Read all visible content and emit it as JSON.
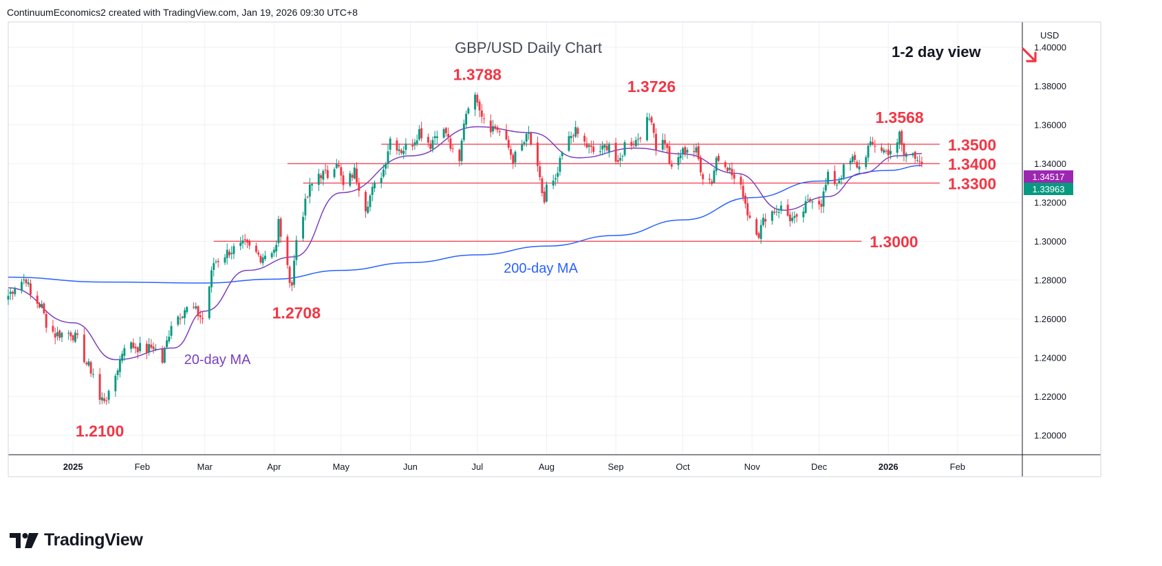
{
  "header": {
    "caption": "ContinuumEconomics2 created with TradingView.com, Jan 19, 2026 09:30 UTC+8"
  },
  "brand": {
    "name": "TradingView"
  },
  "chart_data": {
    "type": "candlestick",
    "title": "GBP/USD Daily Chart",
    "view_note": "1-2 day view",
    "view_icon": "arrow-down-right-icon",
    "currency": "USD",
    "ylim": [
      1.19,
      1.413
    ],
    "yticks": [
      "1.40000",
      "1.38000",
      "1.36000",
      "1.34000",
      "1.32000",
      "1.30000",
      "1.28000",
      "1.26000",
      "1.24000",
      "1.22000",
      "1.20000"
    ],
    "x_domain": [
      "2024-12-03",
      "2026-03-02"
    ],
    "month_ticks": [
      {
        "label": "2025",
        "date": "2025-01-01"
      },
      {
        "label": "Feb",
        "date": "2025-02-01"
      },
      {
        "label": "Mar",
        "date": "2025-03-01"
      },
      {
        "label": "Apr",
        "date": "2025-04-01"
      },
      {
        "label": "May",
        "date": "2025-05-01"
      },
      {
        "label": "Jun",
        "date": "2025-06-01"
      },
      {
        "label": "Jul",
        "date": "2025-07-01"
      },
      {
        "label": "Aug",
        "date": "2025-08-01"
      },
      {
        "label": "Sep",
        "date": "2025-09-01"
      },
      {
        "label": "Oct",
        "date": "2025-10-01"
      },
      {
        "label": "Nov",
        "date": "2025-11-01"
      },
      {
        "label": "Dec",
        "date": "2025-12-01"
      },
      {
        "label": "2026",
        "date": "2026-01-01"
      },
      {
        "label": "Feb",
        "date": "2026-02-01"
      }
    ],
    "price_path": [
      [
        "2024-12-03",
        1.272
      ],
      [
        "2024-12-06",
        1.277
      ],
      [
        "2024-12-11",
        1.281
      ],
      [
        "2024-12-13",
        1.272
      ],
      [
        "2024-12-18",
        1.266
      ],
      [
        "2024-12-20",
        1.258
      ],
      [
        "2024-12-24",
        1.252
      ],
      [
        "2024-12-31",
        1.253
      ],
      [
        "2025-01-03",
        1.249
      ],
      [
        "2025-01-07",
        1.237
      ],
      [
        "2025-01-10",
        1.232
      ],
      [
        "2025-01-13",
        1.218
      ],
      [
        "2025-01-17",
        1.22
      ],
      [
        "2025-01-20",
        1.231
      ],
      [
        "2025-01-24",
        1.247
      ],
      [
        "2025-01-28",
        1.246
      ],
      [
        "2025-02-03",
        1.244
      ],
      [
        "2025-02-06",
        1.246
      ],
      [
        "2025-02-10",
        1.238
      ],
      [
        "2025-02-14",
        1.258
      ],
      [
        "2025-02-20",
        1.265
      ],
      [
        "2025-02-24",
        1.265
      ],
      [
        "2025-02-28",
        1.26
      ],
      [
        "2025-03-03",
        1.277
      ],
      [
        "2025-03-05",
        1.289
      ],
      [
        "2025-03-12",
        1.295
      ],
      [
        "2025-03-19",
        1.298
      ],
      [
        "2025-03-26",
        1.292
      ],
      [
        "2025-04-02",
        1.297
      ],
      [
        "2025-04-03",
        1.31
      ],
      [
        "2025-04-07",
        1.285
      ],
      [
        "2025-04-09",
        1.278
      ],
      [
        "2025-04-11",
        1.301
      ],
      [
        "2025-04-14",
        1.315
      ],
      [
        "2025-04-17",
        1.327
      ],
      [
        "2025-04-21",
        1.335
      ],
      [
        "2025-04-25",
        1.334
      ],
      [
        "2025-04-29",
        1.342
      ],
      [
        "2025-05-02",
        1.328
      ],
      [
        "2025-05-07",
        1.336
      ],
      [
        "2025-05-12",
        1.318
      ],
      [
        "2025-05-15",
        1.326
      ],
      [
        "2025-05-20",
        1.337
      ],
      [
        "2025-05-23",
        1.353
      ],
      [
        "2025-05-28",
        1.347
      ],
      [
        "2025-06-02",
        1.351
      ],
      [
        "2025-06-05",
        1.357
      ],
      [
        "2025-06-10",
        1.35
      ],
      [
        "2025-06-13",
        1.357
      ],
      [
        "2025-06-17",
        1.356
      ],
      [
        "2025-06-20",
        1.345
      ],
      [
        "2025-06-23",
        1.34
      ],
      [
        "2025-06-25",
        1.362
      ],
      [
        "2025-06-27",
        1.371
      ],
      [
        "2025-07-01",
        1.374
      ],
      [
        "2025-07-03",
        1.366
      ],
      [
        "2025-07-07",
        1.359
      ],
      [
        "2025-07-10",
        1.358
      ],
      [
        "2025-07-15",
        1.348
      ],
      [
        "2025-07-17",
        1.342
      ],
      [
        "2025-07-21",
        1.349
      ],
      [
        "2025-07-24",
        1.355
      ],
      [
        "2025-07-28",
        1.336
      ],
      [
        "2025-07-31",
        1.32
      ],
      [
        "2025-08-01",
        1.328
      ],
      [
        "2025-08-05",
        1.33
      ],
      [
        "2025-08-08",
        1.345
      ],
      [
        "2025-08-13",
        1.357
      ],
      [
        "2025-08-15",
        1.355
      ],
      [
        "2025-08-19",
        1.349
      ],
      [
        "2025-08-22",
        1.346
      ],
      [
        "2025-08-26",
        1.347
      ],
      [
        "2025-08-29",
        1.351
      ],
      [
        "2025-09-02",
        1.338
      ],
      [
        "2025-09-05",
        1.35
      ],
      [
        "2025-09-10",
        1.352
      ],
      [
        "2025-09-16",
        1.363
      ],
      [
        "2025-09-17",
        1.364
      ],
      [
        "2025-09-19",
        1.349
      ],
      [
        "2025-09-23",
        1.352
      ],
      [
        "2025-09-26",
        1.336
      ],
      [
        "2025-09-30",
        1.345
      ],
      [
        "2025-10-03",
        1.348
      ],
      [
        "2025-10-07",
        1.346
      ],
      [
        "2025-10-10",
        1.334
      ],
      [
        "2025-10-14",
        1.331
      ],
      [
        "2025-10-16",
        1.343
      ],
      [
        "2025-10-20",
        1.341
      ],
      [
        "2025-10-24",
        1.332
      ],
      [
        "2025-10-28",
        1.325
      ],
      [
        "2025-10-30",
        1.315
      ],
      [
        "2025-11-04",
        1.304
      ],
      [
        "2025-11-07",
        1.313
      ],
      [
        "2025-11-11",
        1.316
      ],
      [
        "2025-11-14",
        1.317
      ],
      [
        "2025-11-18",
        1.312
      ],
      [
        "2025-11-21",
        1.31
      ],
      [
        "2025-11-25",
        1.318
      ],
      [
        "2025-11-28",
        1.323
      ],
      [
        "2025-12-02",
        1.32
      ],
      [
        "2025-12-05",
        1.333
      ],
      [
        "2025-12-09",
        1.33
      ],
      [
        "2025-12-12",
        1.337
      ],
      [
        "2025-12-16",
        1.342
      ],
      [
        "2025-12-19",
        1.338
      ],
      [
        "2025-12-23",
        1.348
      ],
      [
        "2025-12-26",
        1.35
      ],
      [
        "2025-12-31",
        1.346
      ],
      [
        "2026-01-05",
        1.349
      ],
      [
        "2026-01-06",
        1.355
      ],
      [
        "2026-01-08",
        1.344
      ],
      [
        "2026-01-12",
        1.346
      ],
      [
        "2026-01-14",
        1.344
      ],
      [
        "2026-01-16",
        1.3396
      ]
    ],
    "moving_averages": [
      {
        "name": "200-day MA",
        "color": "#2962ff",
        "points": [
          [
            "2024-12-03",
            1.2815
          ],
          [
            "2025-01-15",
            1.279
          ],
          [
            "2025-03-01",
            1.2785
          ],
          [
            "2025-04-01",
            1.2805
          ],
          [
            "2025-05-01",
            1.285
          ],
          [
            "2025-06-01",
            1.289
          ],
          [
            "2025-07-01",
            1.293
          ],
          [
            "2025-08-01",
            1.2975
          ],
          [
            "2025-09-01",
            1.303
          ],
          [
            "2025-10-01",
            1.311
          ],
          [
            "2025-11-01",
            1.3225
          ],
          [
            "2025-12-01",
            1.331
          ],
          [
            "2026-01-01",
            1.3365
          ],
          [
            "2026-01-16",
            1.339
          ]
        ]
      },
      {
        "name": "20-day MA",
        "color": "#7b3fbf",
        "points": [
          [
            "2024-12-03",
            1.276
          ],
          [
            "2025-01-01",
            1.258
          ],
          [
            "2025-01-20",
            1.239
          ],
          [
            "2025-02-15",
            1.245
          ],
          [
            "2025-03-01",
            1.264
          ],
          [
            "2025-03-20",
            1.285
          ],
          [
            "2025-04-10",
            1.292
          ],
          [
            "2025-05-01",
            1.325
          ],
          [
            "2025-06-01",
            1.344
          ],
          [
            "2025-07-01",
            1.359
          ],
          [
            "2025-07-25",
            1.356
          ],
          [
            "2025-08-15",
            1.343
          ],
          [
            "2025-09-10",
            1.348
          ],
          [
            "2025-10-01",
            1.345
          ],
          [
            "2025-10-25",
            1.335
          ],
          [
            "2025-11-15",
            1.316
          ],
          [
            "2025-12-05",
            1.323
          ],
          [
            "2025-12-20",
            1.335
          ],
          [
            "2026-01-05",
            1.344
          ],
          [
            "2026-01-16",
            1.3452
          ]
        ]
      }
    ],
    "levels": [
      {
        "label": "1.3500",
        "value": 1.35,
        "from": "2025-05-19"
      },
      {
        "label": "1.3400",
        "value": 1.34,
        "from": "2025-04-07"
      },
      {
        "label": "1.3300",
        "value": 1.33,
        "from": "2025-04-14"
      },
      {
        "label": "1.3000",
        "value": 1.3,
        "from": "2025-03-05",
        "to": "2025-12-20"
      }
    ],
    "peak_labels": [
      {
        "text": "1.3788",
        "date": "2025-07-01",
        "value": 1.3788,
        "position": "above"
      },
      {
        "text": "1.3726",
        "date": "2025-09-17",
        "value": 1.3726,
        "position": "above"
      },
      {
        "text": "1.3568",
        "date": "2026-01-06",
        "value": 1.3568,
        "position": "above"
      },
      {
        "text": "1.2708",
        "date": "2025-04-11",
        "value": 1.2708,
        "position": "below"
      },
      {
        "text": "1.2100",
        "date": "2025-01-13",
        "value": 1.21,
        "position": "below"
      }
    ],
    "ma_labels": [
      {
        "text": "200-day MA",
        "color": "#2962ff"
      },
      {
        "text": "20-day MA",
        "color": "#7b3fbf"
      }
    ],
    "price_badges": [
      {
        "value": "1.34517",
        "color": "#9c27b0"
      },
      {
        "value": "1.33963",
        "color": "#089981"
      }
    ],
    "colors": {
      "up": "#089981",
      "down": "#f23645",
      "level": "#f23645",
      "label": "#f23645",
      "grid": "#eef0f4"
    }
  }
}
